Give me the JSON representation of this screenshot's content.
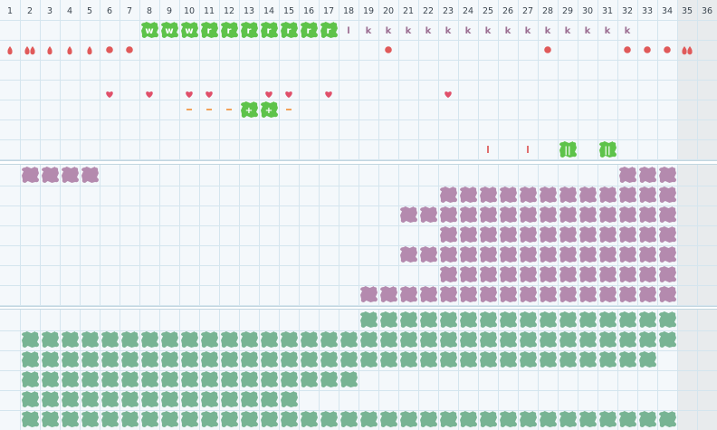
{
  "columns": [
    "1",
    "2",
    "3",
    "4",
    "5",
    "6",
    "7",
    "8",
    "9",
    "10",
    "11",
    "12",
    "13",
    "14",
    "15",
    "16",
    "17",
    "18",
    "19",
    "20",
    "21",
    "22",
    "23",
    "24",
    "25",
    "26",
    "27",
    "28",
    "29",
    "30",
    "31",
    "32",
    "33",
    "34",
    "35",
    "36"
  ],
  "colors": {
    "background": "#f4f8fb",
    "grid": "#d4e5ee",
    "header_bg": "#f4f8fb",
    "weekend": "#e8ebed",
    "panel_gap": "#ffffff",
    "green_badge": "#5ec34a",
    "letter_purple": "#9c6f92",
    "drop_red": "#e05a5a",
    "heart_red": "#e0506a",
    "dash_orange": "#f2a25a",
    "tick_red": "#e07070",
    "purple_cell": "#b48aae",
    "teal_cell": "#78b494"
  },
  "badges": [
    {
      "col": 8,
      "text": "w"
    },
    {
      "col": 9,
      "text": "w"
    },
    {
      "col": 10,
      "text": "w"
    },
    {
      "col": 11,
      "text": "r"
    },
    {
      "col": 12,
      "text": "r"
    },
    {
      "col": 13,
      "text": "r"
    },
    {
      "col": 14,
      "text": "r"
    },
    {
      "col": 15,
      "text": "r"
    },
    {
      "col": 16,
      "text": "r"
    },
    {
      "col": 17,
      "text": "r"
    }
  ],
  "letters": [
    {
      "col": 18,
      "text": "l"
    },
    {
      "col": 19,
      "text": "k"
    },
    {
      "col": 20,
      "text": "k"
    },
    {
      "col": 21,
      "text": "k"
    },
    {
      "col": 22,
      "text": "k"
    },
    {
      "col": 23,
      "text": "k"
    },
    {
      "col": 24,
      "text": "k"
    },
    {
      "col": 25,
      "text": "k"
    },
    {
      "col": 26,
      "text": "k"
    },
    {
      "col": 27,
      "text": "k"
    },
    {
      "col": 28,
      "text": "k"
    },
    {
      "col": 29,
      "text": "k"
    },
    {
      "col": 30,
      "text": "k"
    },
    {
      "col": 31,
      "text": "k"
    },
    {
      "col": 32,
      "text": "k"
    }
  ],
  "row1_marks": [
    {
      "col": 1,
      "kind": "drop"
    },
    {
      "col": 2,
      "kind": "drop2"
    },
    {
      "col": 3,
      "kind": "drop"
    },
    {
      "col": 4,
      "kind": "drop"
    },
    {
      "col": 5,
      "kind": "drop"
    },
    {
      "col": 6,
      "kind": "dot"
    },
    {
      "col": 7,
      "kind": "dot"
    },
    {
      "col": 20,
      "kind": "dot"
    },
    {
      "col": 28,
      "kind": "dot"
    },
    {
      "col": 32,
      "kind": "dot"
    },
    {
      "col": 33,
      "kind": "dot"
    },
    {
      "col": 34,
      "kind": "dot"
    },
    {
      "col": 35,
      "kind": "drop2"
    }
  ],
  "hearts": [
    6,
    8,
    10,
    11,
    14,
    15,
    17,
    23
  ],
  "dashes": [
    10,
    11,
    12,
    15
  ],
  "plus_badges": [
    {
      "col": 13,
      "text": "+"
    },
    {
      "col": 14,
      "text": "+"
    }
  ],
  "ticks": [
    25,
    27
  ],
  "double_badges": [
    {
      "col": 29,
      "text": "||"
    },
    {
      "col": 31,
      "text": "||"
    }
  ],
  "purple_rows": [
    [
      [
        2,
        5
      ],
      [
        32,
        34
      ]
    ],
    [
      [
        23,
        34
      ]
    ],
    [
      [
        21,
        34
      ]
    ],
    [
      [
        23,
        34
      ]
    ],
    [
      [
        21,
        34
      ]
    ],
    [
      [
        23,
        34
      ]
    ],
    [
      [
        19,
        34
      ]
    ]
  ],
  "teal_rows": [
    [
      [
        19,
        34
      ]
    ],
    [
      [
        2,
        34
      ]
    ],
    [
      [
        2,
        33
      ]
    ],
    [
      [
        2,
        18
      ]
    ],
    [
      [
        2,
        15
      ]
    ],
    [
      [
        2,
        34
      ]
    ]
  ]
}
